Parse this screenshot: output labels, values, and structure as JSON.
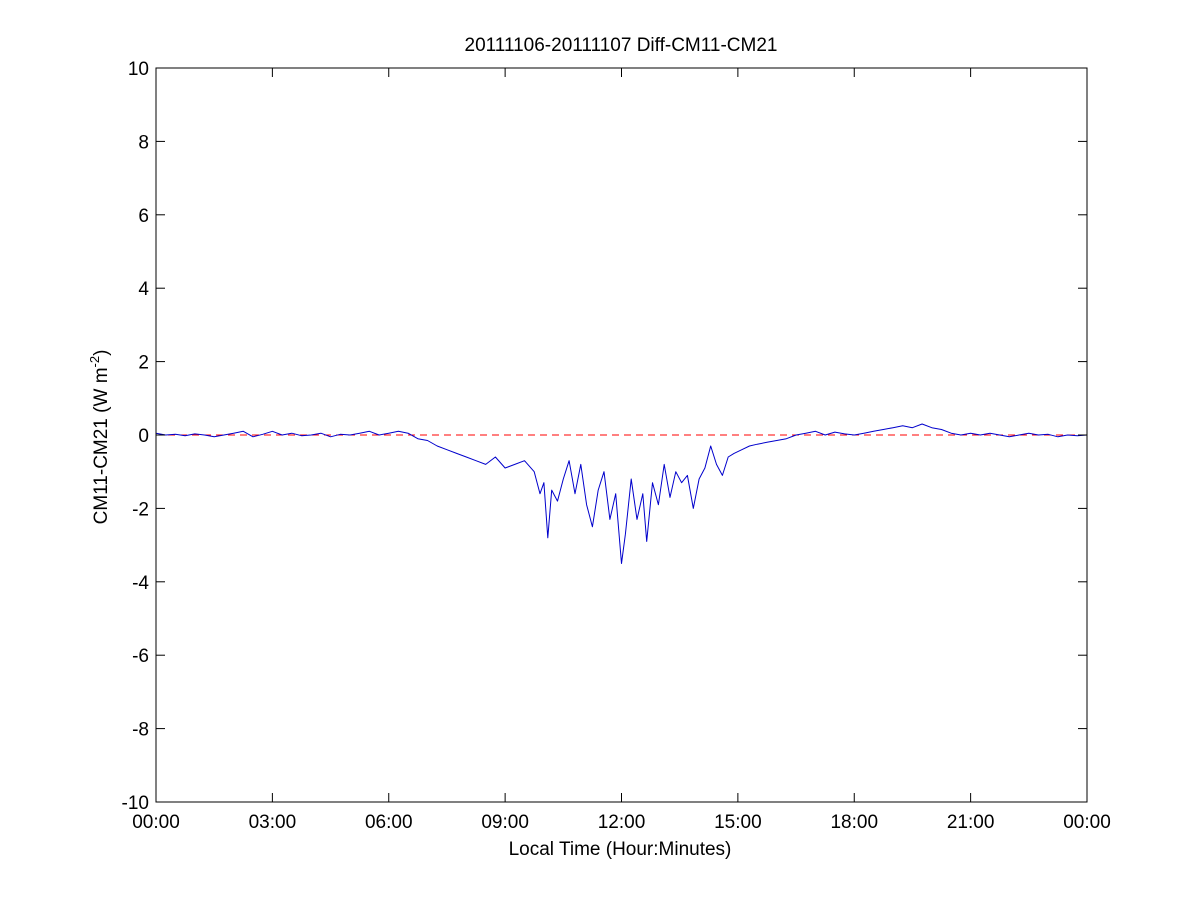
{
  "chart_data": {
    "type": "line",
    "title": "20111106-20111107 Diff-CM11-CM21",
    "xlabel": "Local Time (Hour:Minutes)",
    "ylabel_main": "CM11-CM21 (W m",
    "ylabel_sup": "-2",
    "ylabel_close": ")",
    "x_unit": "hours",
    "xlim": [
      0,
      24
    ],
    "ylim": [
      -10,
      10
    ],
    "x_ticks": [
      {
        "value": 0,
        "label": "00:00"
      },
      {
        "value": 3,
        "label": "03:00"
      },
      {
        "value": 6,
        "label": "06:00"
      },
      {
        "value": 9,
        "label": "09:00"
      },
      {
        "value": 12,
        "label": "12:00"
      },
      {
        "value": 15,
        "label": "15:00"
      },
      {
        "value": 18,
        "label": "18:00"
      },
      {
        "value": 21,
        "label": "21:00"
      },
      {
        "value": 24,
        "label": "00:00"
      }
    ],
    "y_ticks": [
      {
        "value": 10,
        "label": "10"
      },
      {
        "value": 8,
        "label": "8"
      },
      {
        "value": 6,
        "label": "6"
      },
      {
        "value": 4,
        "label": "4"
      },
      {
        "value": 2,
        "label": "2"
      },
      {
        "value": 0,
        "label": "0"
      },
      {
        "value": -2,
        "label": "-2"
      },
      {
        "value": -4,
        "label": "-4"
      },
      {
        "value": -6,
        "label": "-6"
      },
      {
        "value": -8,
        "label": "-8"
      },
      {
        "value": -10,
        "label": "-10"
      }
    ],
    "grid": false,
    "reference_line": {
      "y": 0,
      "style": "dashed",
      "color": "#ff0000"
    },
    "series": [
      {
        "color": "#0000cc",
        "x": [
          0.0,
          0.25,
          0.5,
          0.75,
          1.0,
          1.25,
          1.5,
          1.75,
          2.0,
          2.25,
          2.5,
          2.75,
          3.0,
          3.25,
          3.5,
          3.75,
          4.0,
          4.25,
          4.5,
          4.75,
          5.0,
          5.25,
          5.5,
          5.75,
          6.0,
          6.25,
          6.5,
          6.75,
          7.0,
          7.25,
          7.5,
          7.75,
          8.0,
          8.25,
          8.5,
          8.75,
          9.0,
          9.25,
          9.5,
          9.75,
          9.9,
          10.0,
          10.1,
          10.2,
          10.35,
          10.5,
          10.65,
          10.8,
          10.95,
          11.1,
          11.25,
          11.4,
          11.55,
          11.7,
          11.85,
          12.0,
          12.1,
          12.25,
          12.4,
          12.55,
          12.65,
          12.8,
          12.95,
          13.1,
          13.25,
          13.4,
          13.55,
          13.7,
          13.85,
          14.0,
          14.15,
          14.3,
          14.45,
          14.6,
          14.75,
          14.9,
          15.1,
          15.3,
          15.5,
          15.75,
          16.0,
          16.25,
          16.5,
          16.75,
          17.0,
          17.25,
          17.5,
          17.75,
          18.0,
          18.25,
          18.5,
          18.75,
          19.0,
          19.25,
          19.5,
          19.75,
          20.0,
          20.25,
          20.5,
          20.75,
          21.0,
          21.25,
          21.5,
          21.75,
          22.0,
          22.25,
          22.5,
          22.75,
          23.0,
          23.25,
          23.5,
          23.75,
          24.0
        ],
        "y": [
          0.05,
          0.0,
          0.02,
          -0.02,
          0.03,
          0.0,
          -0.05,
          0.0,
          0.05,
          0.1,
          -0.05,
          0.02,
          0.1,
          0.0,
          0.05,
          -0.02,
          0.0,
          0.05,
          -0.05,
          0.02,
          0.0,
          0.05,
          0.1,
          0.0,
          0.05,
          0.1,
          0.05,
          -0.1,
          -0.15,
          -0.3,
          -0.4,
          -0.5,
          -0.6,
          -0.7,
          -0.8,
          -0.6,
          -0.9,
          -0.8,
          -0.7,
          -1.0,
          -1.6,
          -1.3,
          -2.8,
          -1.5,
          -1.8,
          -1.2,
          -0.7,
          -1.6,
          -0.8,
          -1.9,
          -2.5,
          -1.5,
          -1.0,
          -2.3,
          -1.6,
          -3.5,
          -2.7,
          -1.2,
          -2.3,
          -1.6,
          -2.9,
          -1.3,
          -1.9,
          -0.8,
          -1.7,
          -1.0,
          -1.3,
          -1.1,
          -2.0,
          -1.2,
          -0.9,
          -0.3,
          -0.8,
          -1.1,
          -0.6,
          -0.5,
          -0.4,
          -0.3,
          -0.25,
          -0.2,
          -0.15,
          -0.1,
          0.0,
          0.05,
          0.1,
          0.0,
          0.08,
          0.03,
          0.0,
          0.05,
          0.1,
          0.15,
          0.2,
          0.25,
          0.2,
          0.3,
          0.2,
          0.15,
          0.05,
          0.0,
          0.05,
          0.0,
          0.05,
          0.0,
          -0.05,
          0.0,
          0.05,
          0.0,
          0.02,
          -0.05,
          0.0,
          -0.02,
          0.0
        ]
      }
    ]
  }
}
